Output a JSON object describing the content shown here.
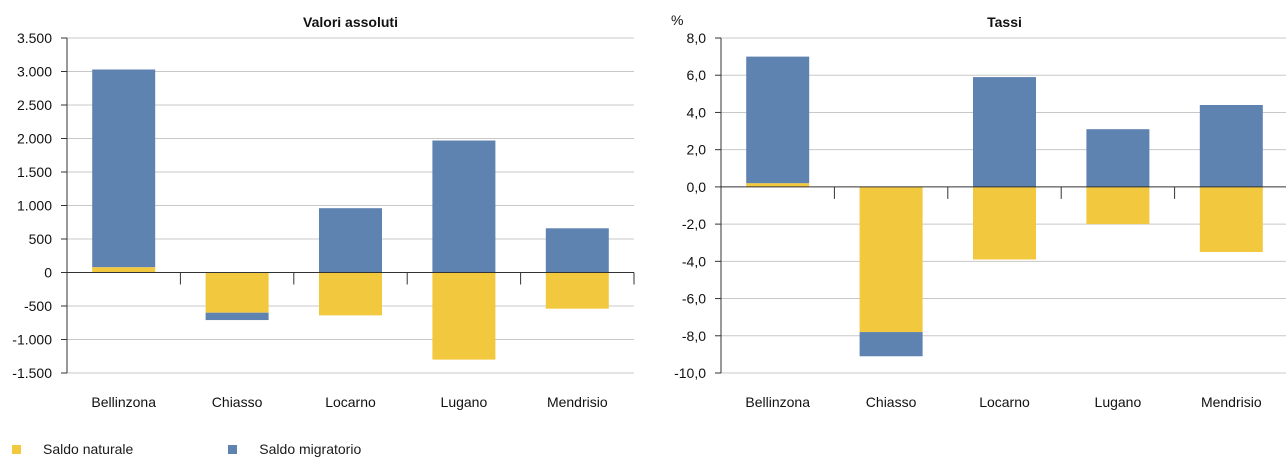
{
  "colors": {
    "saldo_naturale": "#F2C83F",
    "saldo_migratorio": "#5F83B0",
    "grid": "#c8c8c8",
    "axis": "#333333"
  },
  "legend": {
    "items": [
      {
        "label": "Saldo naturale",
        "color": "#F2C83F"
      },
      {
        "label": "Saldo migratorio",
        "color": "#5F83B0"
      }
    ]
  },
  "chart_data": [
    {
      "type": "bar",
      "stacked": true,
      "title": "Valori assoluti",
      "ylabel": "",
      "categories": [
        "Bellinzona",
        "Chiasso",
        "Locarno",
        "Lugano",
        "Mendrisio"
      ],
      "series": [
        {
          "name": "Saldo naturale",
          "values": [
            80,
            -600,
            -640,
            -1300,
            -540
          ]
        },
        {
          "name": "Saldo migratorio",
          "values": [
            2950,
            -110,
            960,
            1970,
            660
          ]
        }
      ],
      "ylim": [
        -1500,
        3500
      ],
      "yticks": [
        3500,
        3000,
        2500,
        2000,
        1500,
        1000,
        500,
        0,
        -500,
        -1000,
        -1500
      ],
      "yticklabels": [
        "3.500",
        "3.000",
        "2.500",
        "2.000",
        "1.500",
        "1.000",
        "500",
        "0",
        "-500",
        "-1.000",
        "-1.500"
      ],
      "grid": true
    },
    {
      "type": "bar",
      "stacked": true,
      "title": "Tassi",
      "ylabel": "%",
      "categories": [
        "Bellinzona",
        "Chiasso",
        "Locarno",
        "Lugano",
        "Mendrisio"
      ],
      "series": [
        {
          "name": "Saldo naturale",
          "values": [
            0.2,
            -7.8,
            -3.9,
            -2.0,
            -3.5
          ]
        },
        {
          "name": "Saldo migratorio",
          "values": [
            6.8,
            -1.3,
            5.9,
            3.1,
            4.4
          ]
        }
      ],
      "ylim": [
        -10,
        8
      ],
      "yticks": [
        8,
        6,
        4,
        2,
        0,
        -2,
        -4,
        -6,
        -8,
        -10
      ],
      "yticklabels": [
        "8,0",
        "6,0",
        "4,0",
        "2,0",
        "0,0",
        "-2,0",
        "-4,0",
        "-6,0",
        "-8,0",
        "-10,0"
      ],
      "grid": true
    }
  ]
}
